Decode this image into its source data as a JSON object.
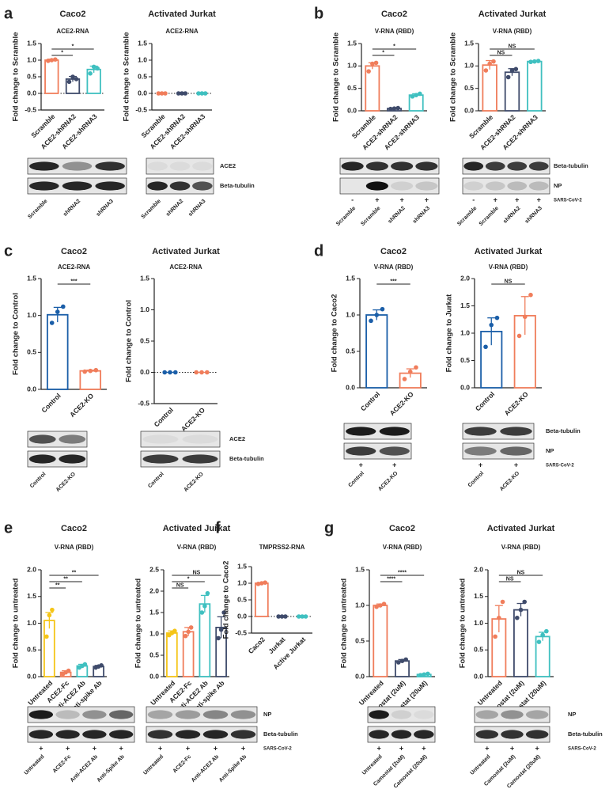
{
  "panels": [
    "a",
    "b",
    "c",
    "d",
    "e",
    "f",
    "g"
  ],
  "chart_data": [
    {
      "type": "bar",
      "title": "Caco2",
      "subtitle": "ACE2-RNA",
      "y_label": "Fold change to Scramble",
      "categories": [
        "Scramble",
        "ACE2-shRNA2",
        "ACE2-shRNA3"
      ],
      "colors": [
        "#f07d5b",
        "#3f4b6b",
        "#3fc0c0"
      ],
      "values": [
        1.0,
        0.43,
        0.72
      ],
      "errors": [
        0.03,
        0.08,
        0.1
      ],
      "points": [
        [
          0.98,
          1.0,
          1.02
        ],
        [
          0.35,
          0.5,
          0.43
        ],
        [
          0.6,
          0.8,
          0.75
        ]
      ],
      "ylim": [
        -0.5,
        1.5
      ],
      "yticks": [
        -0.5,
        {
          "value": 0,
          "label": "0.0"
        },
        0.5,
        {
          "value": 1,
          "label": "1.0"
        },
        1.5
      ],
      "ref_line": 0,
      "brackets": [
        "*",
        "*"
      ]
    },
    {
      "type": "bar",
      "title": "Activated Jurkat",
      "subtitle": "ACE2-RNA",
      "y_label": "Fold change to Scramble",
      "categories": [
        "Scramble",
        "ACE2-shRNA2",
        "ACE2-shRNA3"
      ],
      "colors": [
        "#f07d5b",
        "#3f4b6b",
        "#3fc0c0"
      ],
      "values": [
        0,
        0,
        0
      ],
      "errors": [
        0,
        0,
        0
      ],
      "points": [
        [
          0,
          0,
          0
        ],
        [
          0,
          0,
          0
        ],
        [
          0,
          0,
          0
        ]
      ],
      "ylim": [
        -0.5,
        1.5
      ],
      "yticks": [
        -0.5,
        {
          "value": 0,
          "label": "0.0"
        },
        0.5,
        {
          "value": 1,
          "label": "1.0"
        },
        1.5
      ],
      "ref_line": 0,
      "brackets": []
    },
    {
      "type": "bar",
      "title": "Caco2",
      "subtitle": "V-RNA (RBD)",
      "y_label": "Fold change to Scramble",
      "categories": [
        "Scramble",
        "ACE2-shRNA2",
        "ACE2-shRNA3"
      ],
      "colors": [
        "#f07d5b",
        "#3f4b6b",
        "#3fc0c0"
      ],
      "values": [
        1.0,
        0.05,
        0.35
      ],
      "errors": [
        0.07,
        0.01,
        0.03
      ],
      "points": [
        [
          0.88,
          1.05,
          1.07
        ],
        [
          0.04,
          0.05,
          0.06
        ],
        [
          0.32,
          0.35,
          0.38
        ]
      ],
      "ylim": [
        0,
        1.5
      ],
      "yticks": [
        {
          "value": 0,
          "label": "0.0"
        },
        0.5,
        {
          "value": 1,
          "label": "1.0"
        },
        1.5
      ],
      "brackets": [
        "*",
        "*"
      ]
    },
    {
      "type": "bar",
      "title": "Activated Jurkat",
      "subtitle": "V-RNA (RBD)",
      "y_label": "Fold change to Scramble",
      "categories": [
        "Scramble",
        "ACE2-shRNA2",
        "ACE2-shRNA3"
      ],
      "colors": [
        "#f07d5b",
        "#3f4b6b",
        "#3fc0c0"
      ],
      "values": [
        1.02,
        0.86,
        1.1
      ],
      "errors": [
        0.1,
        0.08,
        0.01
      ],
      "points": [
        [
          0.9,
          1.05,
          1.1
        ],
        [
          0.75,
          0.9,
          0.93
        ],
        [
          1.09,
          1.1,
          1.11
        ]
      ],
      "ylim": [
        0,
        1.5
      ],
      "yticks": [
        {
          "value": 0,
          "label": "0.0"
        },
        0.5,
        {
          "value": 1,
          "label": "1.0"
        },
        1.5
      ],
      "brackets": [
        "NS",
        "NS"
      ]
    },
    {
      "type": "bar",
      "title": "Caco2",
      "subtitle": "ACE2-RNA",
      "y_label": "Fold change to Control",
      "categories": [
        "Control",
        "ACE2-KO"
      ],
      "colors": [
        "#1a5ea8",
        "#f07d5b"
      ],
      "values": [
        1.01,
        0.25
      ],
      "errors": [
        0.1,
        0.01
      ],
      "points": [
        [
          0.9,
          1.05,
          1.12
        ],
        [
          0.24,
          0.25,
          0.26
        ]
      ],
      "ylim": [
        0,
        1.5
      ],
      "yticks": [
        {
          "value": 0,
          "label": "0.0"
        },
        0.5,
        {
          "value": 1,
          "label": "1.0"
        },
        1.5
      ],
      "brackets": [
        "***"
      ]
    },
    {
      "type": "bar",
      "title": "Activated Jurkat",
      "subtitle": "ACE2-RNA",
      "y_label": "Fold change to Control",
      "categories": [
        "Control",
        "ACE2-KO"
      ],
      "colors": [
        "#1a5ea8",
        "#f07d5b"
      ],
      "values": [
        0,
        0
      ],
      "errors": [
        0,
        0
      ],
      "points": [
        [
          0,
          0,
          0
        ],
        [
          0,
          0,
          0
        ]
      ],
      "ylim": [
        -0.5,
        1.5
      ],
      "yticks": [
        -0.5,
        {
          "value": 0,
          "label": "0.0"
        },
        0.5,
        {
          "value": 1,
          "label": "1.0"
        },
        1.5
      ],
      "ref_line": 0,
      "brackets": []
    },
    {
      "type": "bar",
      "title": "Caco2",
      "subtitle": "V-RNA (RBD)",
      "y_label": "Fold change to Caco2",
      "categories": [
        "Control",
        "ACE2-KO"
      ],
      "colors": [
        "#1a5ea8",
        "#f07d5b"
      ],
      "values": [
        1.0,
        0.2
      ],
      "errors": [
        0.07,
        0.06
      ],
      "points": [
        [
          0.92,
          1.0,
          1.08
        ],
        [
          0.12,
          0.22,
          0.28
        ]
      ],
      "ylim": [
        0,
        1.5
      ],
      "yticks": [
        {
          "value": 0,
          "label": "0.0"
        },
        0.5,
        {
          "value": 1,
          "label": "1.0"
        },
        1.5
      ],
      "brackets": [
        "***"
      ]
    },
    {
      "type": "bar",
      "title": "Activated Jurkat",
      "subtitle": "V-RNA (RBD)",
      "y_label": "Fold change to Jurkat",
      "categories": [
        "Control",
        "ACE2-KO"
      ],
      "colors": [
        "#1a5ea8",
        "#f07d5b"
      ],
      "values": [
        1.03,
        1.32
      ],
      "errors": [
        0.25,
        0.35
      ],
      "points": [
        [
          0.75,
          1.15,
          1.28
        ],
        [
          0.95,
          1.3,
          1.7
        ]
      ],
      "ylim": [
        0,
        2
      ],
      "yticks": [
        {
          "value": 0,
          "label": "0.0"
        },
        0.5,
        {
          "value": 1,
          "label": "1.0"
        },
        1.5,
        {
          "value": 2,
          "label": "2.0"
        }
      ],
      "brackets": [
        "NS"
      ]
    },
    {
      "type": "bar",
      "title": "Caco2",
      "subtitle": "V-RNA (RBD)",
      "y_label": "Fold change to untreated",
      "categories": [
        "Untreated",
        "ACE2-Fc",
        "Anti-ACE2 Ab",
        "Anti-spike Ab"
      ],
      "colors": [
        "#f5c518",
        "#f07d5b",
        "#3fc0c0",
        "#3f4b6b"
      ],
      "values": [
        1.05,
        0.08,
        0.2,
        0.19
      ],
      "errors": [
        0.15,
        0.03,
        0.03,
        0.02
      ],
      "points": [
        [
          0.75,
          1.15,
          1.25
        ],
        [
          0.05,
          0.08,
          0.11
        ],
        [
          0.17,
          0.2,
          0.23
        ],
        [
          0.17,
          0.19,
          0.21
        ]
      ],
      "ylim": [
        0,
        2
      ],
      "yticks": [
        {
          "value": 0,
          "label": "0.0"
        },
        0.5,
        {
          "value": 1,
          "label": "1.0"
        },
        1.5,
        {
          "value": 2,
          "label": "2.0"
        }
      ],
      "brackets": [
        "**",
        "**",
        "**"
      ]
    },
    {
      "type": "bar",
      "title": "Activated Jurkat",
      "subtitle": "V-RNA (RBD)",
      "y_label": "Fold change to untreated",
      "categories": [
        "Untreated",
        "ACE2-Fc",
        "Anti-ACE2 Ab",
        "Anti-spike Ab"
      ],
      "colors": [
        "#f5c518",
        "#f07d5b",
        "#3fc0c0",
        "#3f4b6b"
      ],
      "values": [
        1.02,
        1.05,
        1.7,
        1.15
      ],
      "errors": [
        0.05,
        0.1,
        0.2,
        0.25
      ],
      "points": [
        [
          0.97,
          1.02,
          1.07
        ],
        [
          0.95,
          1.05,
          1.15
        ],
        [
          1.5,
          1.65,
          1.95
        ],
        [
          0.9,
          1.1,
          1.5
        ]
      ],
      "ylim": [
        0,
        2.5
      ],
      "yticks": [
        {
          "value": 0,
          "label": "0.0"
        },
        0.5,
        {
          "value": 1,
          "label": "1.0"
        },
        1.5,
        {
          "value": 2,
          "label": "2.0"
        },
        2.5
      ],
      "brackets": [
        "NS",
        "*",
        "NS"
      ]
    },
    {
      "type": "bar",
      "subtitle": "TMPRSS2-RNA",
      "y_label": "Fold change to Caco2",
      "categories": [
        "Caco2",
        "Jurkat",
        "Active Jurkat"
      ],
      "colors": [
        "#f07d5b",
        "#3f4b6b",
        "#3fc0c0"
      ],
      "values": [
        1.0,
        0,
        0
      ],
      "errors": [
        0.02,
        0,
        0
      ],
      "points": [
        [
          0.98,
          1.0,
          1.02
        ],
        [
          0,
          0,
          0
        ],
        [
          0,
          0,
          0
        ]
      ],
      "ylim": [
        -0.5,
        1.5
      ],
      "yticks": [
        -0.5,
        {
          "value": 0,
          "label": "0.0"
        },
        0.5,
        {
          "value": 1,
          "label": "1.0"
        },
        1.5
      ],
      "ref_line": 0,
      "brackets": []
    },
    {
      "type": "bar",
      "title": "Caco2",
      "subtitle": "V-RNA (RBD)",
      "y_label": "Fold change to untreated",
      "categories": [
        "Untreated",
        "Camostat (2uM)",
        "Camostat (20uM)"
      ],
      "colors": [
        "#f07d5b",
        "#3f4b6b",
        "#3fc0c0"
      ],
      "values": [
        1.0,
        0.22,
        0.03
      ],
      "errors": [
        0.02,
        0.02,
        0.01
      ],
      "points": [
        [
          0.98,
          1.0,
          1.02
        ],
        [
          0.2,
          0.22,
          0.24
        ],
        [
          0.02,
          0.03,
          0.04
        ]
      ],
      "ylim": [
        0,
        1.5
      ],
      "yticks": [
        {
          "value": 0,
          "label": "0.0"
        },
        0.5,
        {
          "value": 1,
          "label": "1.0"
        },
        1.5
      ],
      "brackets": [
        "****",
        "****"
      ]
    },
    {
      "type": "bar",
      "title": "Activated Jurkat",
      "subtitle": "V-RNA (RBD)",
      "y_label": "Fold change to untreated",
      "categories": [
        "Untreated",
        "Camostat (2uM)",
        "Camostat (20uM)"
      ],
      "colors": [
        "#f07d5b",
        "#3f4b6b",
        "#3fc0c0"
      ],
      "values": [
        1.08,
        1.25,
        0.75
      ],
      "errors": [
        0.25,
        0.12,
        0.08
      ],
      "points": [
        [
          0.75,
          1.1,
          1.4
        ],
        [
          1.1,
          1.25,
          1.4
        ],
        [
          0.65,
          0.78,
          0.85
        ]
      ],
      "ylim": [
        0,
        2
      ],
      "yticks": [
        {
          "value": 0,
          "label": "0.0"
        },
        0.5,
        {
          "value": 1,
          "label": "1.0"
        },
        1.5,
        {
          "value": 2,
          "label": "2.0"
        }
      ],
      "brackets": [
        "NS",
        "NS"
      ]
    }
  ],
  "blots": [
    {
      "row_labels": [
        "ACE2",
        "Beta-tubulin"
      ],
      "groups": [
        {
          "lanes": [
            "Scramble",
            "shRNA2",
            "shRNA3"
          ]
        },
        {
          "lanes": [
            "Scramble",
            "shRNA2",
            "shRNA3"
          ]
        }
      ]
    },
    {
      "row_labels": [
        "Beta-tubulin",
        "NP"
      ],
      "sign_label": "SARS-CoV-2",
      "groups": [
        {
          "signs": [
            "-",
            "+",
            "+",
            "+"
          ],
          "lanes": [
            "Scramble",
            "Scramble",
            "shRNA2",
            "shRNA3"
          ]
        },
        {
          "signs": [
            "-",
            "+",
            "+",
            "+"
          ],
          "lanes": [
            "Scramble",
            "Scramble",
            "shRNA2",
            "shRNA3"
          ]
        }
      ]
    },
    {
      "row_labels": [
        "ACE2",
        "Beta-tubulin"
      ],
      "groups": [
        {
          "lanes": [
            "Control",
            "ACE2-KO"
          ]
        },
        {
          "lanes": [
            "Control",
            "ACE2-KO"
          ]
        }
      ]
    },
    {
      "row_labels": [
        "Beta-tubulin",
        "NP"
      ],
      "sign_label": "SARS-CoV-2",
      "groups": [
        {
          "signs": [
            "+",
            "+"
          ],
          "lanes": [
            "Control",
            "ACE2-KO"
          ]
        },
        {
          "signs": [
            "+",
            "+"
          ],
          "lanes": [
            "Control",
            "ACE2-KO"
          ]
        }
      ]
    },
    {
      "row_labels": [
        "NP",
        "Beta-tubulin"
      ],
      "sign_label": "SARS-CoV-2",
      "groups": [
        {
          "signs": [
            "+",
            "+",
            "+",
            "+"
          ],
          "lanes": [
            "Untreated",
            "ACE2-Fc",
            "Anti-ACE2 Ab",
            "Anti-Spike Ab"
          ]
        },
        {
          "signs": [
            "+",
            "+",
            "+",
            "+"
          ],
          "lanes": [
            "Untreated",
            "ACE2-Fc",
            "Anti-ACE2 Ab",
            "Anti-Spike Ab"
          ]
        }
      ]
    },
    {
      "row_labels": [
        "NP",
        "Beta-tubulin"
      ],
      "sign_label": "SARS-CoV-2",
      "groups": [
        {
          "signs": [
            "+",
            "+",
            "+"
          ],
          "lanes": [
            "Untreated",
            "Camostat (2uM)",
            "Camostat (20uM)"
          ]
        },
        {
          "signs": [
            "+",
            "+",
            "+"
          ],
          "lanes": [
            "Untreated",
            "Camostat (2uM)",
            "Camostat (20uM)"
          ]
        }
      ]
    }
  ]
}
